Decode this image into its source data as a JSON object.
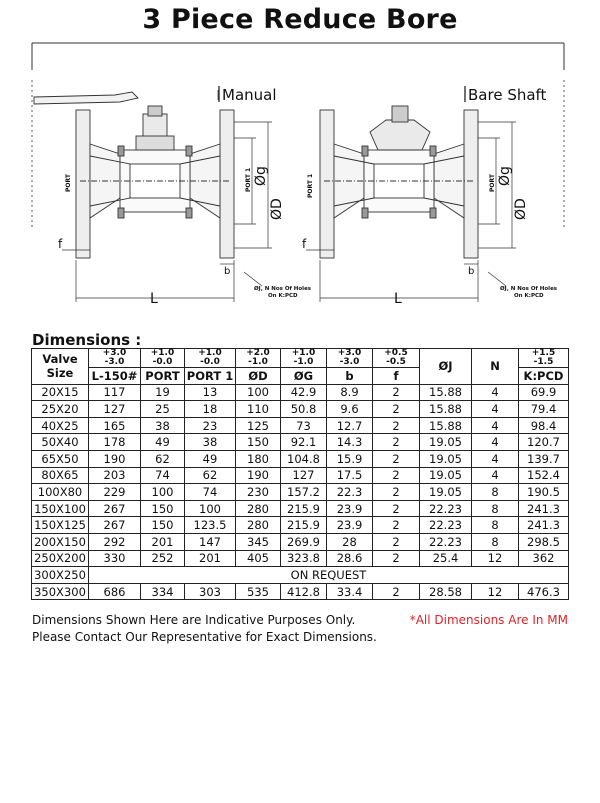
{
  "title": "3 Piece Reduce Bore",
  "drawing": {
    "manual_label": "Manual",
    "bare_shaft_label": "Bare Shaft",
    "dim_port": "PORT",
    "dim_port1": "PORT 1",
    "dim_g": "Øg",
    "dim_d": "ØD",
    "dim_f": "f",
    "dim_b": "b",
    "dim_l": "L",
    "holes_note_line1": "ØJ, N Nos Of Holes",
    "holes_note_line2": "On K:PCD"
  },
  "section_heading": "Dimensions :",
  "table": {
    "col_valve_size": "Valve Size",
    "tolerances": [
      [
        "+3.0",
        "-3.0"
      ],
      [
        "+1.0",
        "-0.0"
      ],
      [
        "+1.0",
        "-0.0"
      ],
      [
        "+2.0",
        "-1.0"
      ],
      [
        "+1.0",
        "-1.0"
      ],
      [
        "+3.0",
        "-3.0"
      ],
      [
        "+0.5",
        "-0.5"
      ],
      [
        "+1.5",
        "-1.5"
      ]
    ],
    "col_j": "ØJ",
    "col_n": "N",
    "columns": [
      "L-150#",
      "PORT",
      "PORT 1",
      "ØD",
      "ØG",
      "b",
      "f",
      "K:PCD"
    ],
    "rows": [
      [
        "20X15",
        "117",
        "19",
        "13",
        "100",
        "42.9",
        "8.9",
        "2",
        "15.88",
        "4",
        "69.9"
      ],
      [
        "25X20",
        "127",
        "25",
        "18",
        "110",
        "50.8",
        "9.6",
        "2",
        "15.88",
        "4",
        "79.4"
      ],
      [
        "40X25",
        "165",
        "38",
        "23",
        "125",
        "73",
        "12.7",
        "2",
        "15.88",
        "4",
        "98.4"
      ],
      [
        "50X40",
        "178",
        "49",
        "38",
        "150",
        "92.1",
        "14.3",
        "2",
        "19.05",
        "4",
        "120.7"
      ],
      [
        "65X50",
        "190",
        "62",
        "49",
        "180",
        "104.8",
        "15.9",
        "2",
        "19.05",
        "4",
        "139.7"
      ],
      [
        "80X65",
        "203",
        "74",
        "62",
        "190",
        "127",
        "17.5",
        "2",
        "19.05",
        "4",
        "152.4"
      ],
      [
        "100X80",
        "229",
        "100",
        "74",
        "230",
        "157.2",
        "22.3",
        "2",
        "19.05",
        "8",
        "190.5"
      ],
      [
        "150X100",
        "267",
        "150",
        "100",
        "280",
        "215.9",
        "23.9",
        "2",
        "22.23",
        "8",
        "241.3"
      ],
      [
        "150X125",
        "267",
        "150",
        "123.5",
        "280",
        "215.9",
        "23.9",
        "2",
        "22.23",
        "8",
        "241.3"
      ],
      [
        "200X150",
        "292",
        "201",
        "147",
        "345",
        "269.9",
        "28",
        "2",
        "22.23",
        "8",
        "298.5"
      ],
      [
        "250X200",
        "330",
        "252",
        "201",
        "405",
        "323.8",
        "28.6",
        "2",
        "25.4",
        "12",
        "362"
      ]
    ],
    "request_row": {
      "size": "300X250",
      "text": "ON REQUEST"
    },
    "last_row": [
      "350X300",
      "686",
      "334",
      "303",
      "535",
      "412.8",
      "33.4",
      "2",
      "28.58",
      "12",
      "476.3"
    ]
  },
  "notes": {
    "line1": "Dimensions Shown Here are Indicative Purposes Only.",
    "line2": "Please Contact Our Representative for Exact Dimensions.",
    "red": "*All Dimensions Are In MM"
  }
}
